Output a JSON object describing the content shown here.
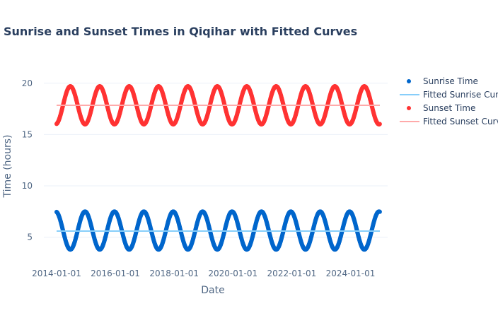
{
  "chart_data": {
    "type": "scatter",
    "title": "Sunrise and Sunset Times in Qiqihar with Fitted Curves",
    "xlabel": "Date",
    "ylabel": "Time (hours)",
    "x_range": [
      "2014-01-01",
      "2024-12-31"
    ],
    "ylim": [
      2.5,
      21.5
    ],
    "x_ticks": [
      "2014-01-01",
      "2016-01-01",
      "2018-01-01",
      "2020-01-01",
      "2022-01-01",
      "2024-01-01"
    ],
    "y_ticks": [
      5,
      10,
      15,
      20
    ],
    "grid": true,
    "legend_position": "right",
    "series": [
      {
        "name": "Sunrise Time",
        "kind": "markers",
        "color": "#0066cc",
        "start_date": "2014-01-01",
        "end_date": "2024-12-31",
        "cycle": "annual",
        "mean": 5.65,
        "amplitude": 1.85,
        "min_month_day": "06-21",
        "extremes_sample": [
          {
            "date": "2014-06-21",
            "value": 3.8
          },
          {
            "date": "2014-12-21",
            "value": 7.5
          }
        ]
      },
      {
        "name": "Fitted Sunrise Curve",
        "kind": "line",
        "color": "#87cefa",
        "start_date": "2014-01-01",
        "end_date": "2024-12-31",
        "value": 5.6
      },
      {
        "name": "Sunset Time",
        "kind": "markers",
        "color": "#ff3333",
        "start_date": "2014-01-01",
        "end_date": "2024-12-31",
        "cycle": "annual",
        "mean": 17.85,
        "amplitude": 1.85,
        "max_month_day": "06-21",
        "extremes_sample": [
          {
            "date": "2014-06-21",
            "value": 19.7
          },
          {
            "date": "2014-12-21",
            "value": 16.0
          }
        ]
      },
      {
        "name": "Fitted Sunset Curve",
        "kind": "line",
        "color": "#ffaaaa",
        "start_date": "2014-01-01",
        "end_date": "2024-12-31",
        "value": 17.85
      }
    ]
  }
}
